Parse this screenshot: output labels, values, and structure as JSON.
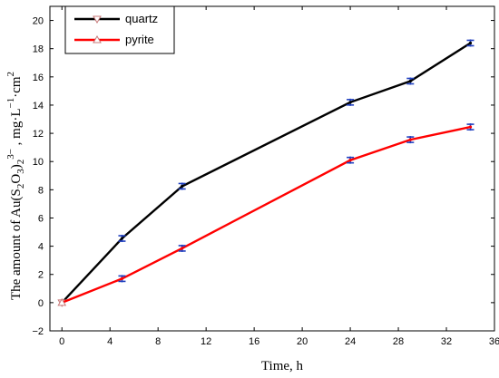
{
  "chart_data": {
    "type": "line",
    "title": "",
    "xlabel": "Time, h",
    "ylabel": {
      "prefix": "The amount of Au(S",
      "sub1": "2",
      "mid1": "O",
      "sub2": "3",
      "mid2": ")",
      "sub3": "2",
      "sup1": "3−",
      "mid3": " , mg·L",
      "sup2": "−1",
      "mid4": "·cm",
      "sup3": "2"
    },
    "xlim": [
      -1,
      36
    ],
    "ylim": [
      -2,
      21
    ],
    "xticks": [
      "0",
      "4",
      "8",
      "12",
      "16",
      "20",
      "24",
      "28",
      "32",
      "36"
    ],
    "yticks": [
      "−2",
      "0",
      "2",
      "4",
      "6",
      "8",
      "10",
      "12",
      "14",
      "16",
      "18",
      "20"
    ],
    "grid": false,
    "legend_position": "top-left",
    "series": [
      {
        "name": "quartz",
        "color": "#000000",
        "marker": "triangle-down",
        "x": [
          0,
          5,
          10,
          24,
          29,
          34
        ],
        "y": [
          0,
          4.55,
          8.25,
          14.2,
          15.7,
          18.4
        ]
      },
      {
        "name": "pyrite",
        "color": "#ff0000",
        "marker": "triangle-up",
        "x": [
          0,
          5,
          10,
          24,
          29,
          34
        ],
        "y": [
          0,
          1.7,
          3.85,
          10.1,
          11.55,
          12.45
        ]
      }
    ],
    "error_bar_color": "#1f3fbf"
  }
}
